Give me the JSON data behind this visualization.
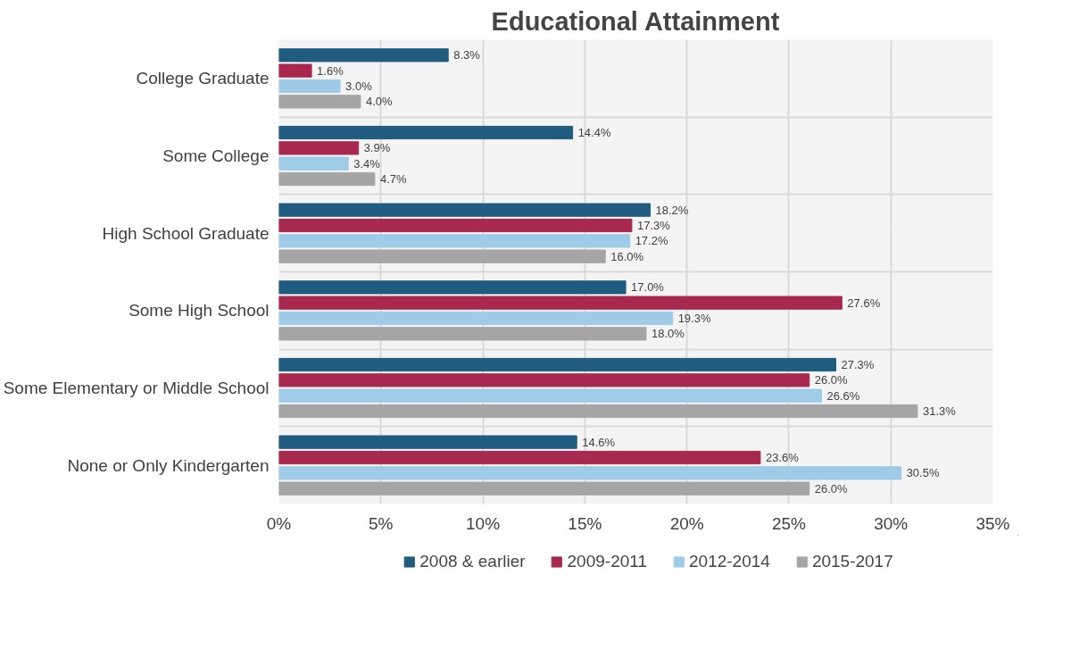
{
  "chart_data": {
    "type": "bar",
    "orientation": "horizontal",
    "title": "Educational Attainment",
    "categories": [
      "College Graduate",
      "Some College",
      "High School Graduate",
      "Some High School",
      "Some Elementary or Middle School",
      "None or Only Kindergarten"
    ],
    "series": [
      {
        "name": "2008 & earlier",
        "color": "#1f5c7f",
        "values": [
          8.3,
          14.4,
          18.2,
          17.0,
          27.3,
          14.6
        ],
        "value_labels": [
          "8.3%",
          "14.4%",
          "18.2%",
          "17.0%",
          "27.3%",
          "14.6%"
        ]
      },
      {
        "name": "2009-2011",
        "color": "#a8294f",
        "values": [
          1.6,
          3.9,
          17.3,
          27.6,
          26.0,
          23.6
        ],
        "value_labels": [
          "1.6%",
          "3.9%",
          "17.3%",
          "27.6%",
          "26.0%",
          "23.6%"
        ]
      },
      {
        "name": "2012-2014",
        "color": "#9ecbe8",
        "values": [
          3.0,
          3.4,
          17.2,
          19.3,
          26.6,
          30.5
        ],
        "value_labels": [
          "3.0%",
          "3.4%",
          "17.2%",
          "19.3%",
          "26.6%",
          "30.5%"
        ]
      },
      {
        "name": "2015-2017",
        "color": "#a5a5a5",
        "values": [
          4.0,
          4.7,
          16.0,
          18.0,
          31.3,
          26.0
        ],
        "value_labels": [
          "4.0%",
          "4.7%",
          "16.0%",
          "18.0%",
          "31.3%",
          "26.0%"
        ]
      }
    ],
    "xlim": [
      0,
      35
    ],
    "xticks": [
      {
        "value": 0,
        "label": "0%"
      },
      {
        "value": 5,
        "label": "5%"
      },
      {
        "value": 10,
        "label": "10%"
      },
      {
        "value": 15,
        "label": "15%"
      },
      {
        "value": 20,
        "label": "20%"
      },
      {
        "value": 25,
        "label": "25%"
      },
      {
        "value": 30,
        "label": "30%"
      },
      {
        "value": 35,
        "label": "35%"
      }
    ],
    "grid": true,
    "legend": "bottom"
  }
}
